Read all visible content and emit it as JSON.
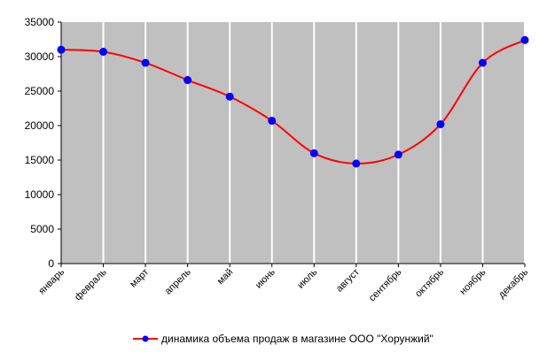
{
  "chart_data": {
    "type": "line",
    "categories": [
      "январь",
      "февраль",
      "март",
      "апрель",
      "май",
      "июнь",
      "июль",
      "август",
      "сентябрь",
      "октябрь",
      "ноябрь",
      "декабрь"
    ],
    "series": [
      {
        "name": "динамика объема продаж в магазине ООО \"Хорунжий\"",
        "values": [
          31000,
          30700,
          29100,
          26600,
          24200,
          20700,
          16000,
          14500,
          15800,
          20200,
          29100,
          32400
        ],
        "color": "#ff0000",
        "marker_color": "#0000ff"
      }
    ],
    "ylim": [
      0,
      35000
    ],
    "yticks": [
      0,
      5000,
      10000,
      15000,
      20000,
      25000,
      30000,
      35000
    ],
    "grid": "vertical",
    "legend": "bottom",
    "plot_background": "#c0c0c0",
    "grid_color": "#ffffff",
    "smoothed": true
  }
}
